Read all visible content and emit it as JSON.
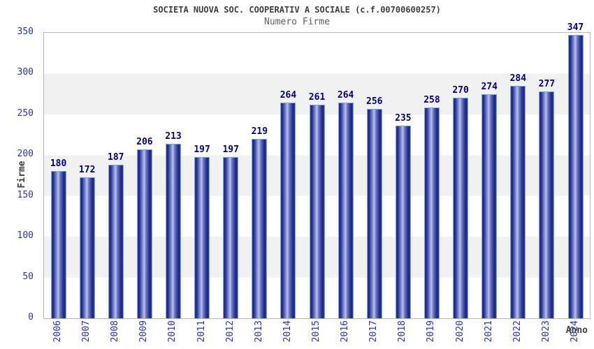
{
  "chart_data": {
    "type": "bar",
    "title": "SOCIETA NUOVA SOC. COOPERATIV A SOCIALE (c.f.00700600257)",
    "subtitle": "Numero Firme",
    "xlabel": "Anno",
    "ylabel": "Firme",
    "categories": [
      "2006",
      "2007",
      "2008",
      "2009",
      "2010",
      "2011",
      "2012",
      "2013",
      "2014",
      "2015",
      "2016",
      "2017",
      "2018",
      "2019",
      "2020",
      "2021",
      "2022",
      "2023",
      "2024"
    ],
    "values": [
      180,
      172,
      187,
      206,
      213,
      197,
      197,
      219,
      264,
      261,
      264,
      256,
      235,
      258,
      270,
      274,
      284,
      277,
      347
    ],
    "ylim": [
      0,
      350
    ],
    "ytick_step": 50,
    "grid": "alternating-horizontal-bands",
    "legend": "none",
    "value_labels": "above-bars",
    "colors": {
      "tick_label": "#2433cb",
      "value_label": "#000080",
      "bar_dark": "#1a2286",
      "bar_mid": "#333f9c",
      "bar_light": "#b9c1ec",
      "bar_edge_highlight": "#72aade",
      "band": "#f1f1f1",
      "plot_border": "#b5b5b5",
      "title": "#404040",
      "subtitle": "#606060",
      "axis_title": "#404040"
    }
  }
}
